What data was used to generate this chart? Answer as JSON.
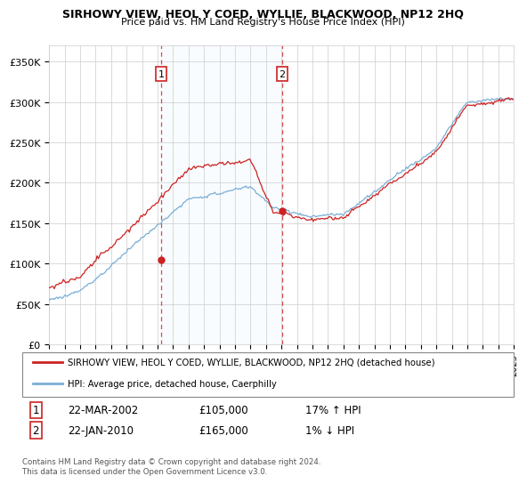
{
  "title": "SIRHOWY VIEW, HEOL Y COED, WYLLIE, BLACKWOOD, NP12 2HQ",
  "subtitle": "Price paid vs. HM Land Registry's House Price Index (HPI)",
  "ylim": [
    0,
    370000
  ],
  "yticks": [
    0,
    50000,
    100000,
    150000,
    200000,
    250000,
    300000,
    350000
  ],
  "ytick_labels": [
    "£0",
    "£50K",
    "£100K",
    "£150K",
    "£200K",
    "£250K",
    "£300K",
    "£350K"
  ],
  "x_start_year": 1995,
  "x_end_year": 2025,
  "hpi_color": "#7aaed6",
  "price_color": "#cc2222",
  "sale1_date": 2002.22,
  "sale1_price": 105000,
  "sale2_date": 2010.05,
  "sale2_price": 165000,
  "sale1_label": "22-MAR-2002",
  "sale2_label": "22-JAN-2010",
  "sale1_hpi_pct": "17% ↑ HPI",
  "sale2_hpi_pct": "1% ↓ HPI",
  "legend_price_label": "SIRHOWY VIEW, HEOL Y COED, WYLLIE, BLACKWOOD, NP12 2HQ (detached house)",
  "legend_hpi_label": "HPI: Average price, detached house, Caerphilly",
  "footnote": "Contains HM Land Registry data © Crown copyright and database right 2024.\nThis data is licensed under the Open Government Licence v3.0.",
  "background_color": "#ffffff",
  "grid_color": "#cccccc",
  "shade_color": "#ddeeff"
}
